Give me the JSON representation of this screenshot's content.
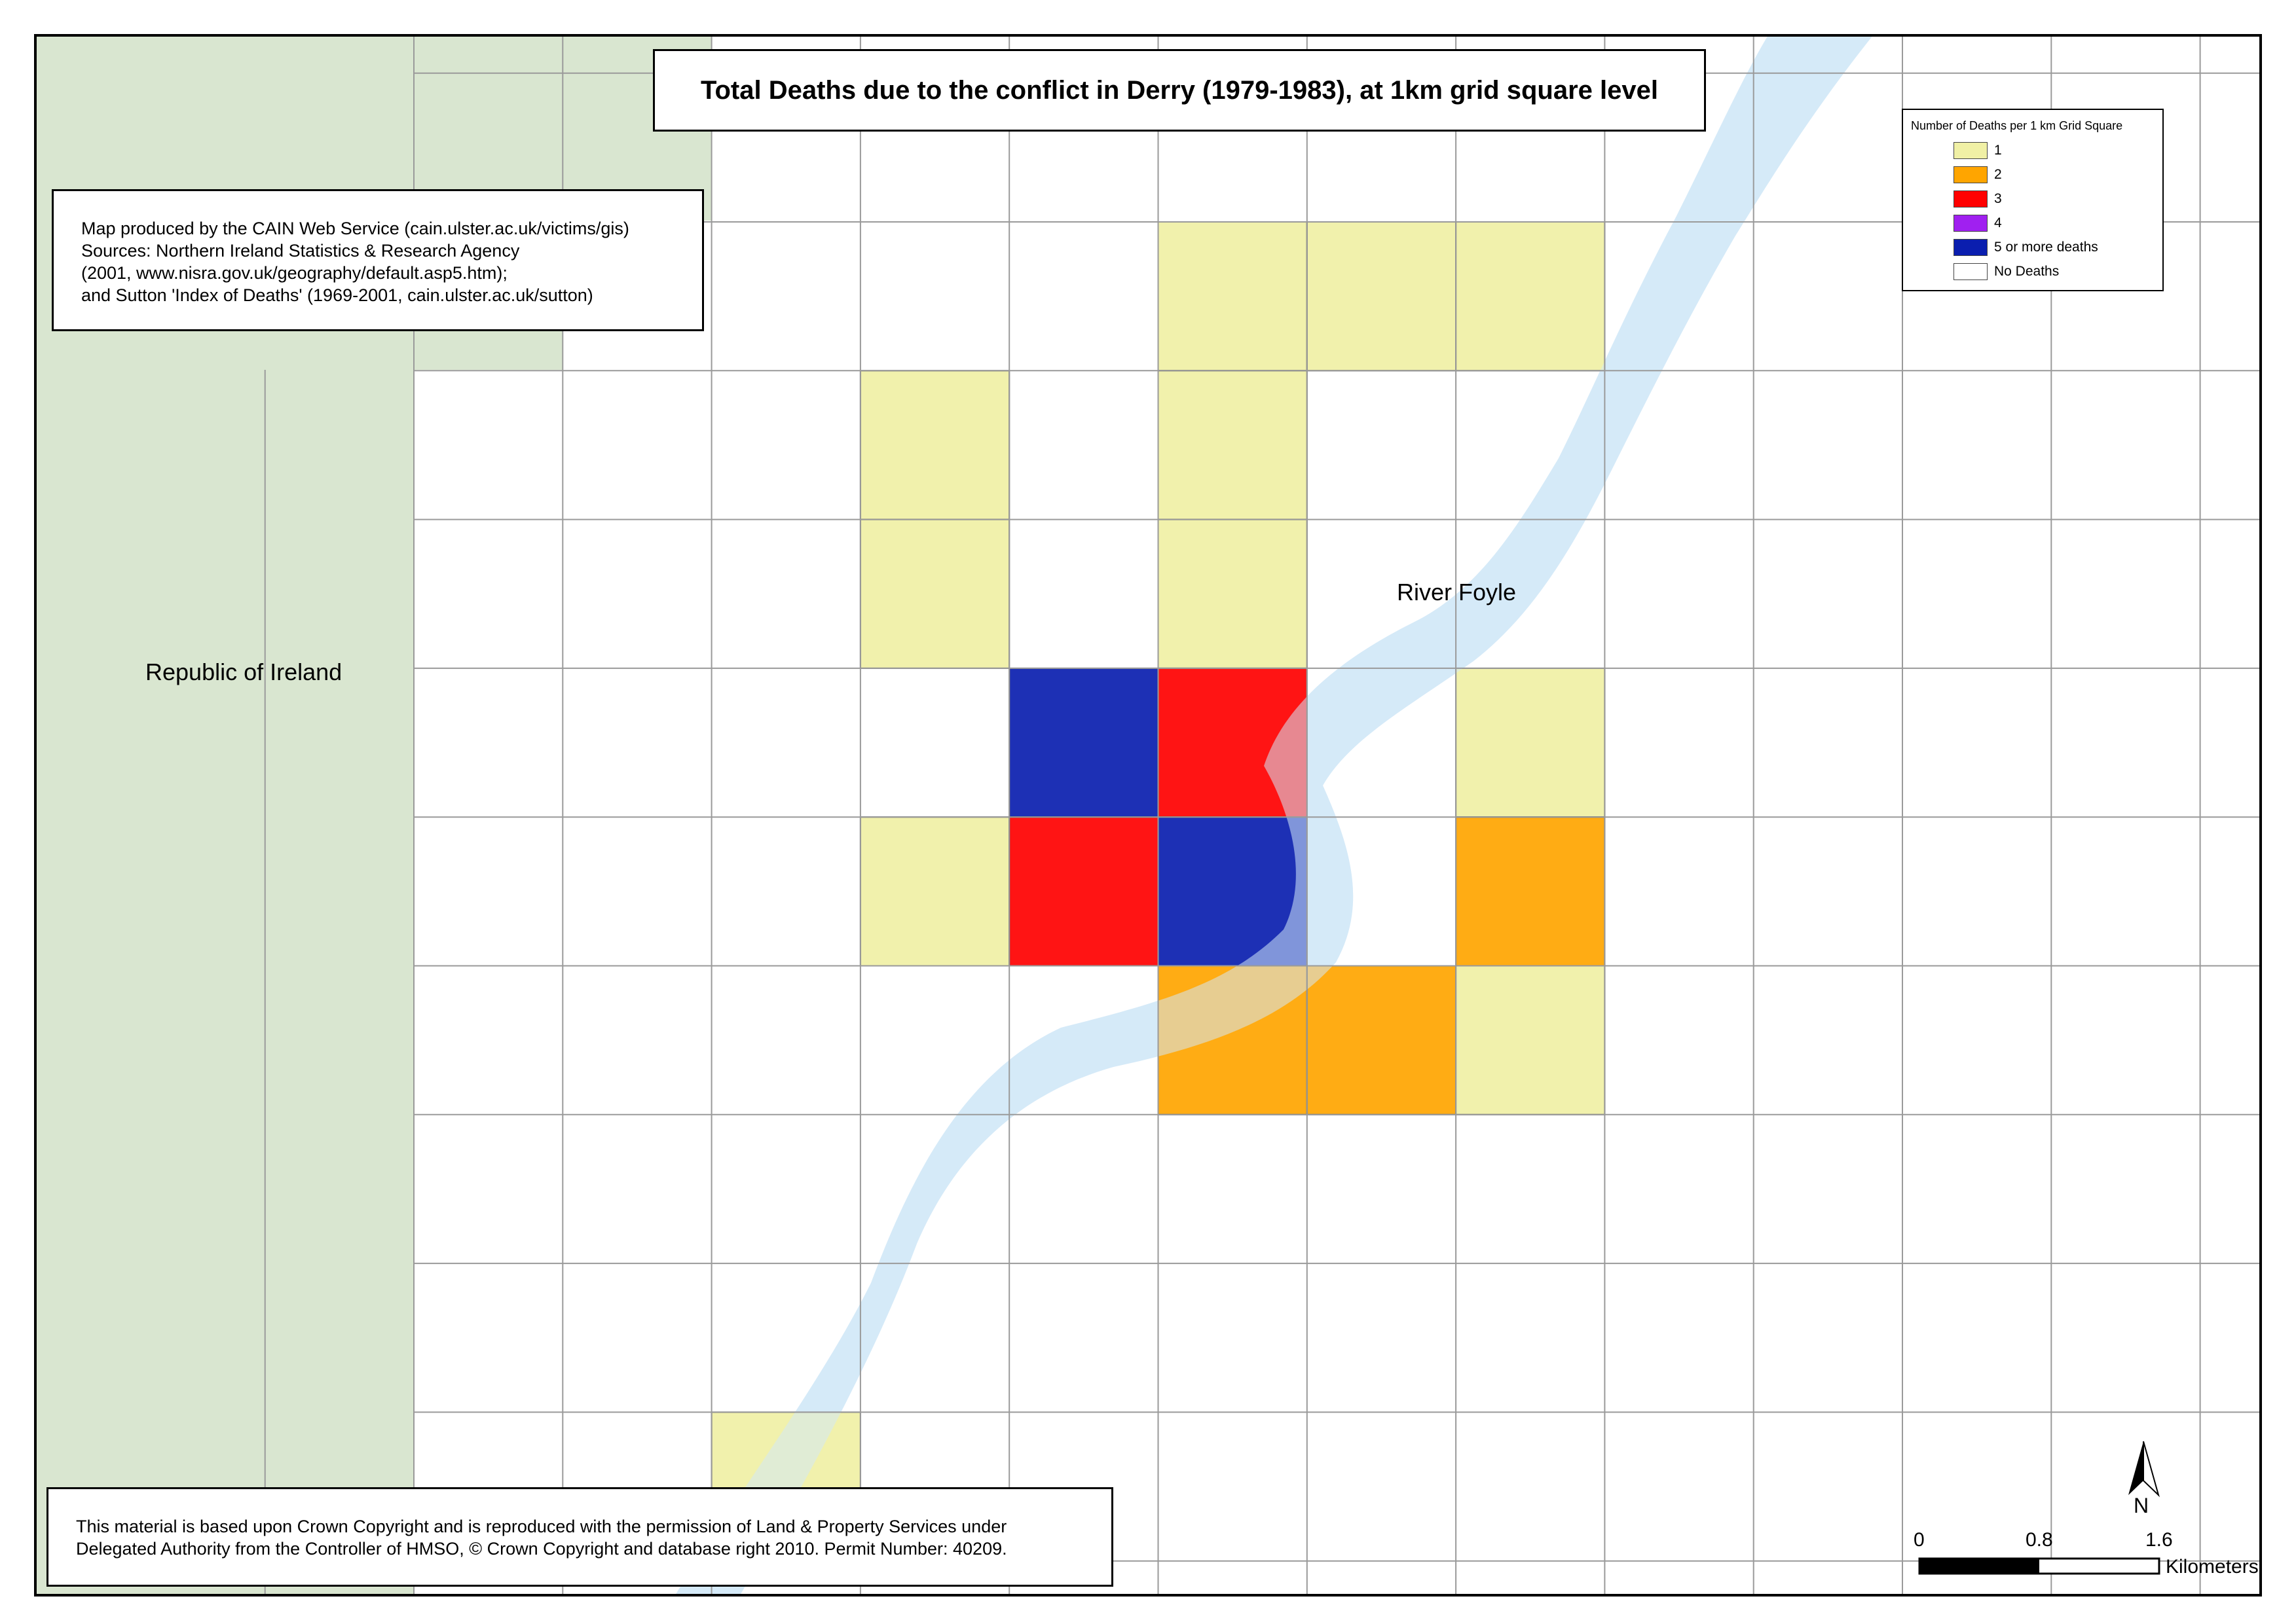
{
  "title": "Total Deaths due to the conflict in Derry (1979-1983), at 1km grid square level",
  "source_lines": [
    "Map produced by the CAIN Web Service (cain.ulster.ac.uk/victims/gis)",
    "Sources: Northern Ireland Statistics & Research Agency",
    "(2001, www.nisra.gov.uk/geography/default.asp5.htm);",
    "and Sutton 'Index of Deaths' (1969-2001, cain.ulster.ac.uk/sutton)"
  ],
  "copyright_lines": [
    "This material is based upon Crown Copyright and is reproduced with the permission of Land & Property Services under",
    "Delegated Authority from the Controller of HMSO, © Crown Copyright and database right 2010. Permit Number: 40209."
  ],
  "legend": {
    "title": "Number of Deaths per 1 km Grid Square",
    "items": [
      {
        "label": "1",
        "color": "#f0f0a5"
      },
      {
        "label": "2",
        "color": "#ffa500"
      },
      {
        "label": "3",
        "color": "#ff0000"
      },
      {
        "label": "4",
        "color": "#a020f0"
      },
      {
        "label": "5 or more deaths",
        "color": "#0a1eaf"
      },
      {
        "label": "No Deaths",
        "color": "#ffffff"
      }
    ]
  },
  "map_labels": {
    "republic_of_ireland": "Republic of Ireland",
    "river": "River Foyle"
  },
  "scale_bar": {
    "ticks": [
      "0",
      "0.8",
      "1.6"
    ],
    "unit": "Kilometers"
  },
  "north_arrow": {
    "label": "N",
    "icon": "north-arrow-icon"
  },
  "colors": {
    "republic_of_ireland": "#d9e6d0",
    "river": "#d6eaf8",
    "grid_line": "#9a9a9a",
    "frame": "#000000"
  },
  "grid_values": [
    [
      0,
      0,
      0,
      0,
      0,
      1,
      1,
      1,
      0,
      0,
      0,
      0,
      0
    ],
    [
      0,
      0,
      0,
      1,
      0,
      1,
      0,
      0,
      0,
      0,
      0,
      0,
      0
    ],
    [
      0,
      0,
      0,
      1,
      0,
      1,
      0,
      0,
      0,
      0,
      0,
      0,
      0
    ],
    [
      0,
      0,
      0,
      0,
      5,
      3,
      0,
      1,
      0,
      0,
      0,
      0,
      0
    ],
    [
      0,
      0,
      0,
      1,
      3,
      5,
      0,
      2,
      0,
      0,
      0,
      0,
      0
    ],
    [
      0,
      0,
      0,
      0,
      0,
      2,
      2,
      1,
      0,
      0,
      0,
      0,
      0
    ],
    [
      0,
      0,
      0,
      0,
      0,
      0,
      0,
      0,
      0,
      0,
      0,
      0,
      0
    ],
    [
      0,
      0,
      0,
      0,
      0,
      0,
      0,
      0,
      0,
      0,
      0,
      0,
      0
    ],
    [
      0,
      0,
      1,
      0,
      0,
      0,
      0,
      0,
      0,
      0,
      0,
      0,
      0
    ]
  ]
}
